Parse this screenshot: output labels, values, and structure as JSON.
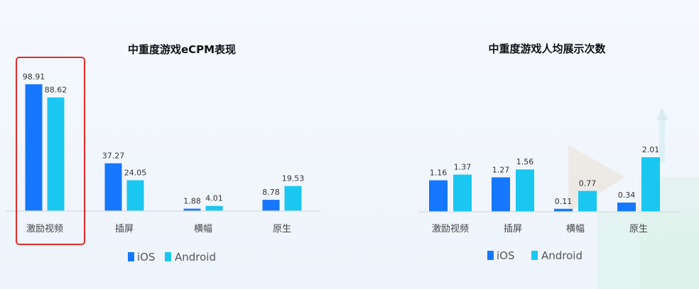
{
  "colors": {
    "ios": "#1677ff",
    "android": "#1ac7f0",
    "highlight": "#e52a2a",
    "axis": "#d8dee8"
  },
  "legend": {
    "ios": "iOS",
    "android": "Android"
  },
  "chart_data": [
    {
      "type": "bar",
      "title": "中重度游戏eCPM表现",
      "categories": [
        "激励视频",
        "插屏",
        "横幅",
        "原生"
      ],
      "series": [
        {
          "name": "iOS",
          "values": [
            98.91,
            37.27,
            1.88,
            8.78
          ]
        },
        {
          "name": "Android",
          "values": [
            88.62,
            24.05,
            4.01,
            19.53
          ]
        }
      ],
      "value_labels": [
        [
          "98.91",
          "37.27",
          "1.88",
          "8.78"
        ],
        [
          "88.62",
          "24.05",
          "4.01",
          "19.53"
        ]
      ],
      "ylim": [
        0,
        100
      ],
      "grid": false,
      "legend_position": "bottom",
      "highlight_category": "激励视频"
    },
    {
      "type": "bar",
      "title": "中重度游戏人均展示次数",
      "categories": [
        "激励视频",
        "插屏",
        "横幅",
        "原生"
      ],
      "series": [
        {
          "name": "iOS",
          "values": [
            1.16,
            1.27,
            0.11,
            0.34
          ]
        },
        {
          "name": "Android",
          "values": [
            1.37,
            1.56,
            0.77,
            2.01
          ]
        }
      ],
      "value_labels": [
        [
          "1.16",
          "1.27",
          "0.11",
          "0.34"
        ],
        [
          "1.37",
          "1.56",
          "0.77",
          "2.01"
        ]
      ],
      "ylim": [
        0,
        2.01
      ],
      "grid": false,
      "legend_position": "bottom"
    }
  ]
}
